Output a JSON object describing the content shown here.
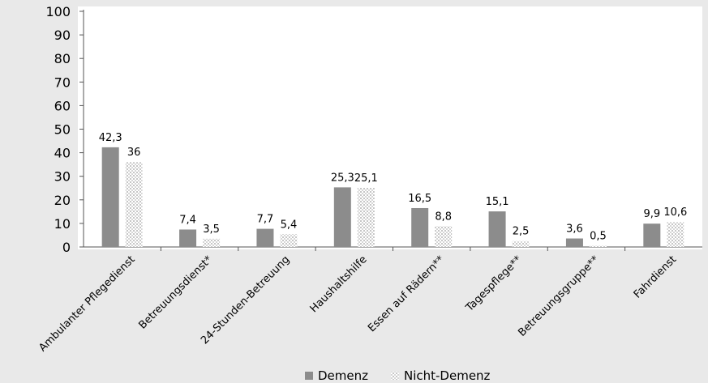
{
  "chart_data": {
    "type": "bar",
    "categories": [
      "Ambulanter Pflegedienst",
      "Betreuungsdienst*",
      "24-Stunden-Betreuung",
      "Haushaltshilfe",
      "Essen auf Rädern**",
      "Tagespflege**",
      "Betreuungsgruppe**",
      "Fahrdienst"
    ],
    "series": [
      {
        "name": "Demenz",
        "values": [
          42.3,
          7.4,
          7.7,
          25.3,
          16.5,
          15.1,
          3.6,
          9.9
        ],
        "labels": [
          "42,3",
          "7,4",
          "7,7",
          "25,3",
          "16,5",
          "15,1",
          "3,6",
          "9,9"
        ],
        "color": "#8c8c8c",
        "fill": "solid"
      },
      {
        "name": "Nicht-Demenz",
        "values": [
          36,
          3.5,
          5.4,
          25.1,
          8.8,
          2.5,
          0.5,
          10.6
        ],
        "labels": [
          "36",
          "3,5",
          "5,4",
          "25,1",
          "8,8",
          "2,5",
          "0,5",
          "10,6"
        ],
        "color": "#d0d0d0",
        "fill": "dotted"
      }
    ],
    "ylim": [
      0,
      100
    ],
    "yticks": [
      0,
      10,
      20,
      30,
      40,
      50,
      60,
      70,
      80,
      90,
      100
    ],
    "grid": false,
    "legend_position": "bottom-center",
    "plot_background": "#ffffff",
    "page_background": "#e9e9e9"
  }
}
